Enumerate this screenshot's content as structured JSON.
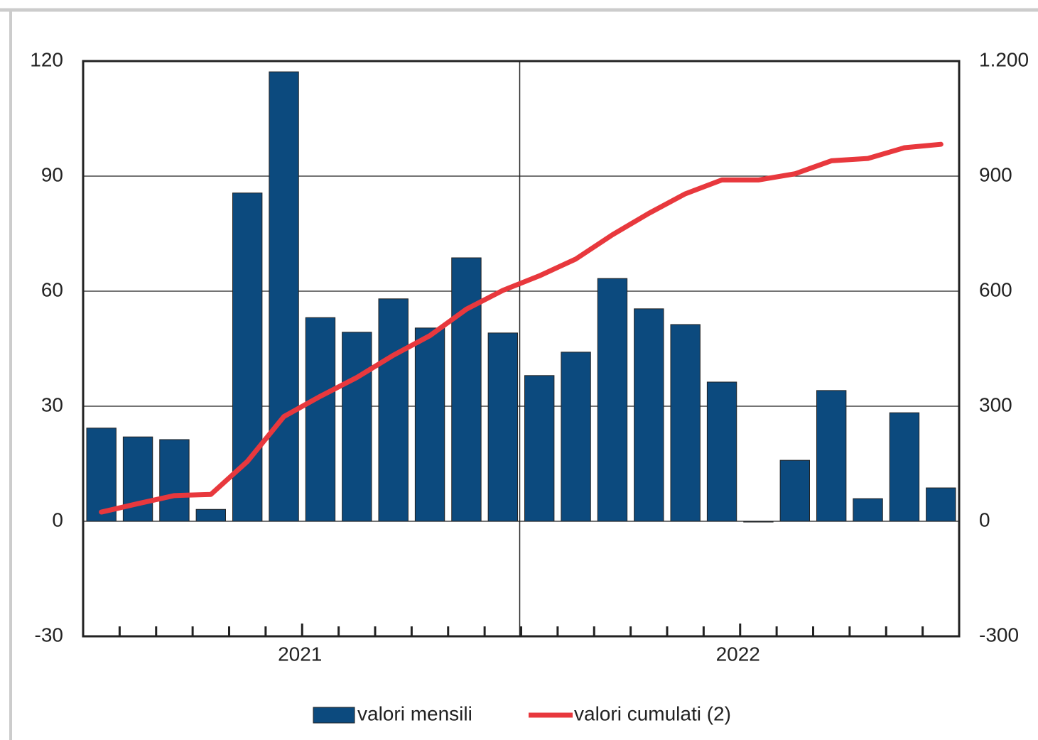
{
  "chart_data": {
    "type": "bar",
    "categories": [
      null,
      null,
      null,
      null,
      null,
      "2021",
      null,
      null,
      null,
      null,
      null,
      null,
      null,
      null,
      null,
      null,
      null,
      "2022",
      null,
      null,
      null,
      null,
      null,
      null
    ],
    "series": [
      {
        "name": "valori mensili",
        "type": "bar",
        "color": "#0c4a7e",
        "values": [
          24.3,
          22,
          21.3,
          3.1,
          85.6,
          117.2,
          53.1,
          49.3,
          58,
          50.4,
          68.7,
          49.1,
          38,
          44.1,
          63.3,
          55.4,
          51.3,
          36.3,
          -0.2,
          15.9,
          34.1,
          5.9,
          28.3,
          8.7
        ]
      },
      {
        "name": "valori cumulati (2)",
        "type": "line",
        "axis": "y2",
        "color": "#e8383d",
        "values": [
          24,
          46,
          67,
          70,
          156,
          273,
          326,
          375,
          433,
          484,
          553,
          602,
          640,
          684,
          747,
          803,
          854,
          890,
          890,
          906,
          940,
          946,
          974,
          983
        ]
      }
    ],
    "ylim": [
      -30,
      120
    ],
    "yticks": [
      -30,
      0,
      30,
      60,
      90,
      120
    ],
    "y2lim": [
      -300,
      1200
    ],
    "y2ticks": [
      -300,
      0,
      300,
      600,
      900,
      {
        "value": 1200,
        "label": "1.200"
      }
    ],
    "grid": true,
    "legend": "bottom"
  }
}
